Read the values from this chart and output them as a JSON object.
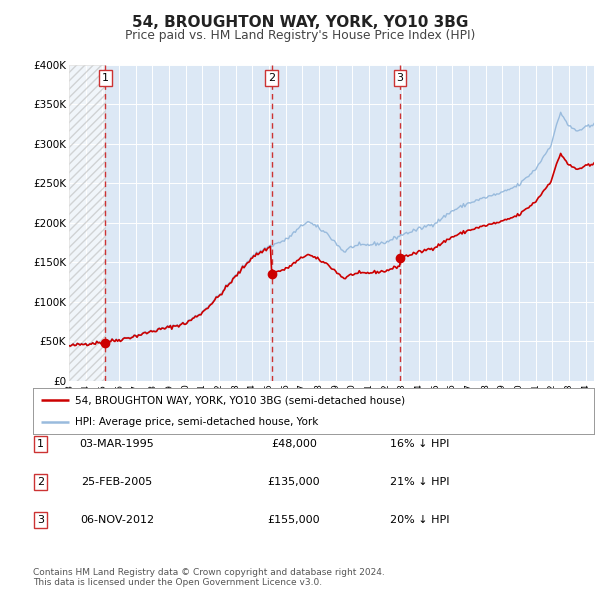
{
  "title": "54, BROUGHTON WAY, YORK, YO10 3BG",
  "subtitle": "Price paid vs. HM Land Registry's House Price Index (HPI)",
  "title_fontsize": 11,
  "subtitle_fontsize": 9,
  "background_color": "#ffffff",
  "plot_bg_color": "#dce8f5",
  "hatch_region_end": 1995.18,
  "vline_dates": [
    1995.18,
    2005.15,
    2012.85
  ],
  "vline_labels": [
    "1",
    "2",
    "3"
  ],
  "sale_dates": [
    1995.18,
    2005.15,
    2012.85
  ],
  "sale_prices": [
    48000,
    135000,
    155000
  ],
  "ylim": [
    0,
    400000
  ],
  "ytick_values": [
    0,
    50000,
    100000,
    150000,
    200000,
    250000,
    300000,
    350000,
    400000
  ],
  "ytick_labels": [
    "£0",
    "£50K",
    "£100K",
    "£150K",
    "£200K",
    "£250K",
    "£300K",
    "£350K",
    "£400K"
  ],
  "legend_line1": "54, BROUGHTON WAY, YORK, YO10 3BG (semi-detached house)",
  "legend_line2": "HPI: Average price, semi-detached house, York",
  "legend_line_color": "#cc0000",
  "legend_hpi_color": "#99bbdd",
  "table_rows": [
    {
      "num": "1",
      "date": "03-MAR-1995",
      "price": "£48,000",
      "hpi": "16% ↓ HPI"
    },
    {
      "num": "2",
      "date": "25-FEB-2005",
      "price": "£135,000",
      "hpi": "21% ↓ HPI"
    },
    {
      "num": "3",
      "date": "06-NOV-2012",
      "price": "£155,000",
      "hpi": "20% ↓ HPI"
    }
  ],
  "footnote": "Contains HM Land Registry data © Crown copyright and database right 2024.\nThis data is licensed under the Open Government Licence v3.0.",
  "grid_color": "#ffffff",
  "hpi_line_color": "#99bbdd",
  "price_line_color": "#cc0000",
  "xlim_start": 1993.0,
  "xlim_end": 2024.5
}
